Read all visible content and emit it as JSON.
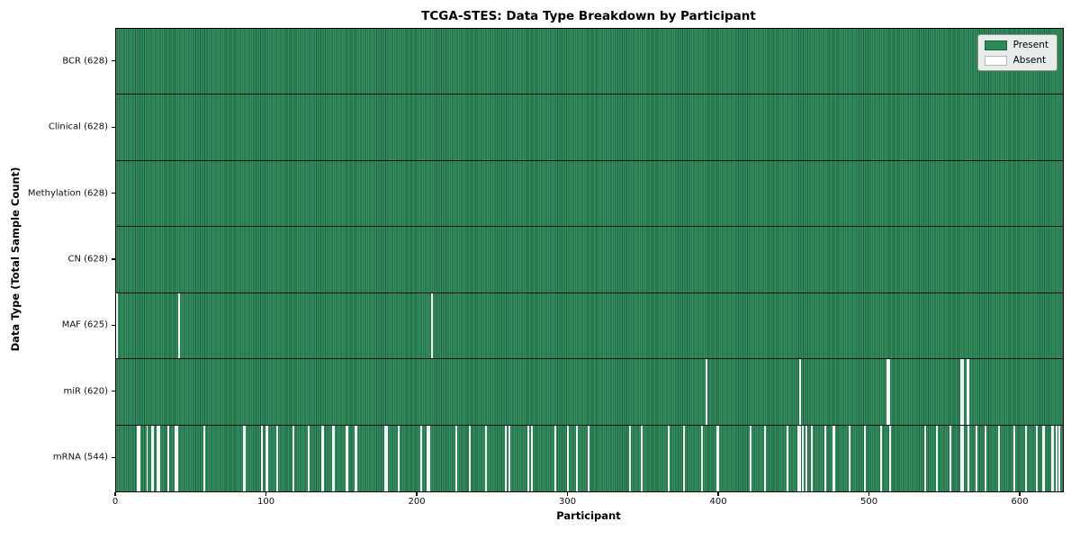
{
  "title": "TCGA-STES: Data Type Breakdown by Participant",
  "axes": {
    "xlabel": "Participant",
    "ylabel": "Data Type (Total Sample Count)"
  },
  "legend": {
    "items": [
      {
        "label": "Present",
        "color": "#2e8b57",
        "border": "#1f5e3d"
      },
      {
        "label": "Absent",
        "color": "#ffffff",
        "border": "#b5b5b5"
      }
    ]
  },
  "chart_data": {
    "type": "heatmap",
    "title": "TCGA-STES: Data Type Breakdown by Participant",
    "xlabel": "Participant",
    "ylabel": "Data Type (Total Sample Count)",
    "x_ticks": [
      0,
      100,
      200,
      300,
      400,
      500,
      600
    ],
    "x_range": [
      0,
      628
    ],
    "n_participants": 628,
    "legend_entries": [
      "Present",
      "Absent"
    ],
    "legend_position": "upper right",
    "colors": {
      "present": "#2e8b57",
      "present_edge": "#1f5e3d",
      "absent": "#ffffff"
    },
    "rows": [
      {
        "data_type": "BCR",
        "label": "BCR (628)",
        "present_count": 628,
        "absent_participants": []
      },
      {
        "data_type": "Clinical",
        "label": "Clinical (628)",
        "present_count": 628,
        "absent_participants": []
      },
      {
        "data_type": "Methylation",
        "label": "Methylation (628)",
        "present_count": 628,
        "absent_participants": []
      },
      {
        "data_type": "CN",
        "label": "CN (628)",
        "present_count": 628,
        "absent_participants": []
      },
      {
        "data_type": "MAF",
        "label": "MAF (625)",
        "present_count": 625,
        "absent_participants": [
          0,
          41,
          209
        ]
      },
      {
        "data_type": "miR",
        "label": "miR (620)",
        "present_count": 620,
        "absent_participants": [
          391,
          453,
          511,
          512,
          560,
          561,
          564,
          565
        ]
      },
      {
        "data_type": "mRNA",
        "label": "mRNA (544)",
        "present_count": 544,
        "absent_participants": [
          14,
          15,
          20,
          23,
          24,
          27,
          28,
          34,
          39,
          40,
          58,
          84,
          85,
          96,
          99,
          100,
          106,
          117,
          127,
          136,
          137,
          143,
          144,
          152,
          153,
          158,
          159,
          178,
          179,
          187,
          202,
          206,
          207,
          225,
          234,
          245,
          258,
          260,
          273,
          275,
          291,
          299,
          305,
          313,
          340,
          348,
          366,
          376,
          388,
          398,
          399,
          420,
          430,
          445,
          452,
          453,
          455,
          457,
          461,
          470,
          475,
          476,
          486,
          496,
          507,
          513,
          536,
          544,
          553,
          560,
          561,
          565,
          570,
          576,
          585,
          595,
          603,
          610,
          614,
          615,
          620,
          621,
          623,
          625
        ]
      }
    ]
  }
}
